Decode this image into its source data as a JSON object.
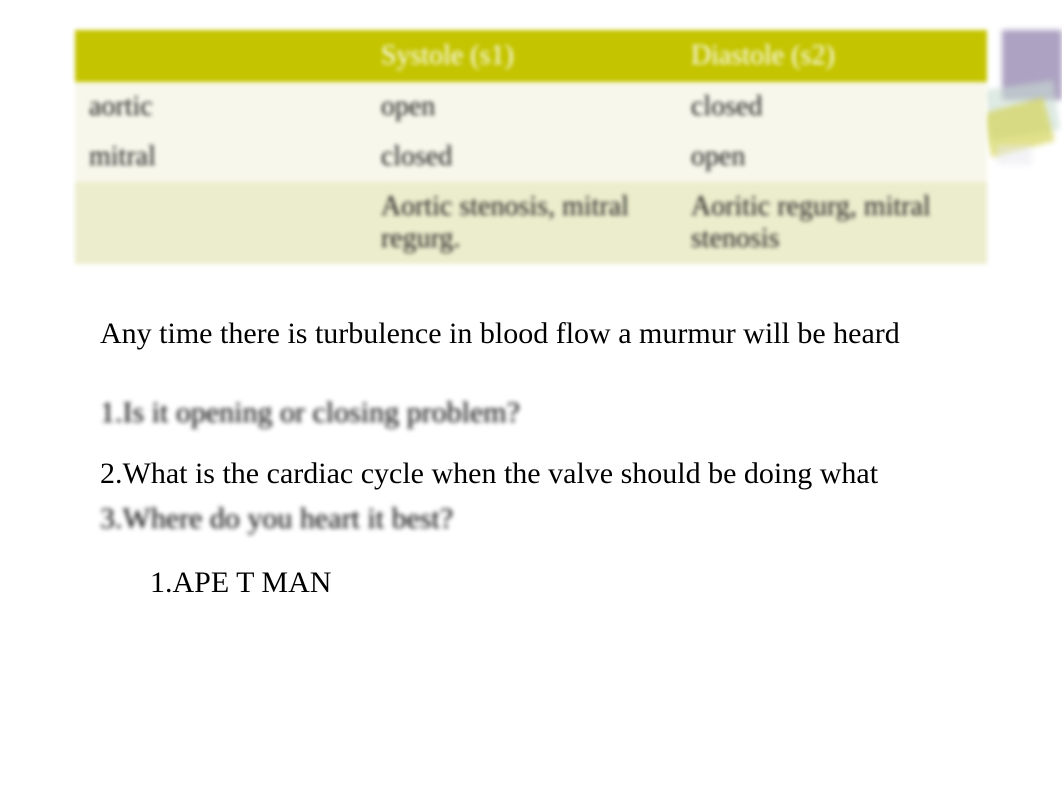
{
  "table": {
    "header_bg": "#c4c400",
    "header_fg": "#ffffff",
    "row_light_bg": "#f7f7eb",
    "row_dark_bg": "#ecedcd",
    "font_size": 28,
    "columns": [
      "",
      "Systole (s1)",
      "Diastole (s2)"
    ],
    "rows": [
      [
        "aortic",
        "open",
        "closed"
      ],
      [
        "mitral",
        "closed",
        "open"
      ],
      [
        "",
        "Aortic stenosis, mitral regurg.",
        "Aoritic regurg, mitral stenosis"
      ]
    ]
  },
  "body": {
    "paragraph": "Any time there is turbulence in blood flow a murmur will be heard",
    "items": [
      "1.Is it opening or closing problem?",
      "2.What is the cardiac cycle when the valve should be doing what",
      "3.Where do you heart it best?"
    ],
    "sub_item": "1.APE T MAN",
    "font_size": 30,
    "text_color": "#000000"
  },
  "corner_colors": {
    "back": "#8a7ba8",
    "mid": "#c8dcd2",
    "front": "#d4d45a",
    "accent": "#e8e8f0"
  },
  "background_color": "#ffffff"
}
